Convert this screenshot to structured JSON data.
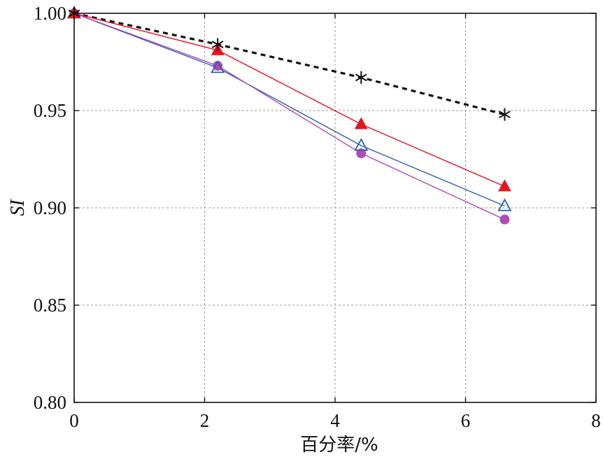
{
  "chart_data": {
    "type": "line",
    "title": "",
    "xlabel": "百分率/%",
    "ylabel": "SI",
    "xlim": [
      0,
      8
    ],
    "ylim": [
      0.8,
      1.0
    ],
    "x_ticks": [
      0,
      2,
      4,
      6,
      8
    ],
    "x_tick_labels": [
      "0",
      "2",
      "4",
      "6",
      "8"
    ],
    "y_ticks": [
      0.8,
      0.85,
      0.9,
      0.95,
      1.0
    ],
    "y_tick_labels": [
      "0.80",
      "0.85",
      "0.90",
      "0.95",
      "1.00"
    ],
    "grid": true,
    "legend": "none",
    "series": [
      {
        "x": [
          0,
          2.2,
          4.4,
          6.6
        ],
        "values": [
          1.0,
          0.984,
          0.967,
          0.948
        ],
        "color": "#111111",
        "line_style": "dashed",
        "marker": "asterisk"
      },
      {
        "x": [
          0,
          2.2,
          4.4,
          6.6
        ],
        "values": [
          1.0,
          0.981,
          0.943,
          0.911
        ],
        "color": "#e8141c",
        "line_style": "solid",
        "marker": "filled-triangle"
      },
      {
        "x": [
          0,
          2.2,
          4.4,
          6.6
        ],
        "values": [
          1.0,
          0.972,
          0.932,
          0.901
        ],
        "color": "#2e5fb0",
        "line_style": "solid",
        "marker": "open-triangle"
      },
      {
        "x": [
          0,
          2.2,
          4.4,
          6.6
        ],
        "values": [
          1.0,
          0.973,
          0.928,
          0.894
        ],
        "color": "#b04ab8",
        "line_style": "solid",
        "marker": "filled-circle"
      }
    ]
  }
}
